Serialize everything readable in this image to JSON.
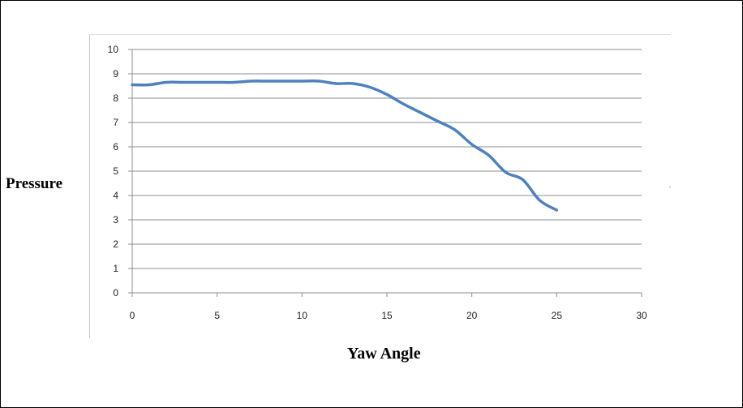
{
  "chart_data": {
    "type": "line",
    "title": "",
    "xlabel": "Yaw Angle",
    "ylabel": "Pressure",
    "xlim": [
      0,
      30
    ],
    "ylim": [
      0,
      10
    ],
    "x_ticks": [
      "0",
      "5",
      "10",
      "15",
      "20",
      "25",
      "30"
    ],
    "y_ticks": [
      "0",
      "1",
      "2",
      "3",
      "4",
      "5",
      "6",
      "7",
      "8",
      "9",
      "10"
    ],
    "grid": "horizontal",
    "legend": "none",
    "series": [
      {
        "color": "#4f81bd",
        "x": [
          0,
          1,
          2,
          3,
          4,
          5,
          6,
          7,
          8,
          9,
          10,
          11,
          12,
          13,
          14,
          15,
          16,
          17,
          18,
          19,
          20,
          21,
          22,
          23,
          24,
          25
        ],
        "y": [
          8.55,
          8.55,
          8.65,
          8.65,
          8.65,
          8.65,
          8.65,
          8.7,
          8.7,
          8.7,
          8.7,
          8.7,
          8.6,
          8.6,
          8.45,
          8.15,
          7.75,
          7.4,
          7.05,
          6.7,
          6.1,
          5.65,
          4.95,
          4.65,
          3.8,
          3.4
        ]
      }
    ]
  }
}
